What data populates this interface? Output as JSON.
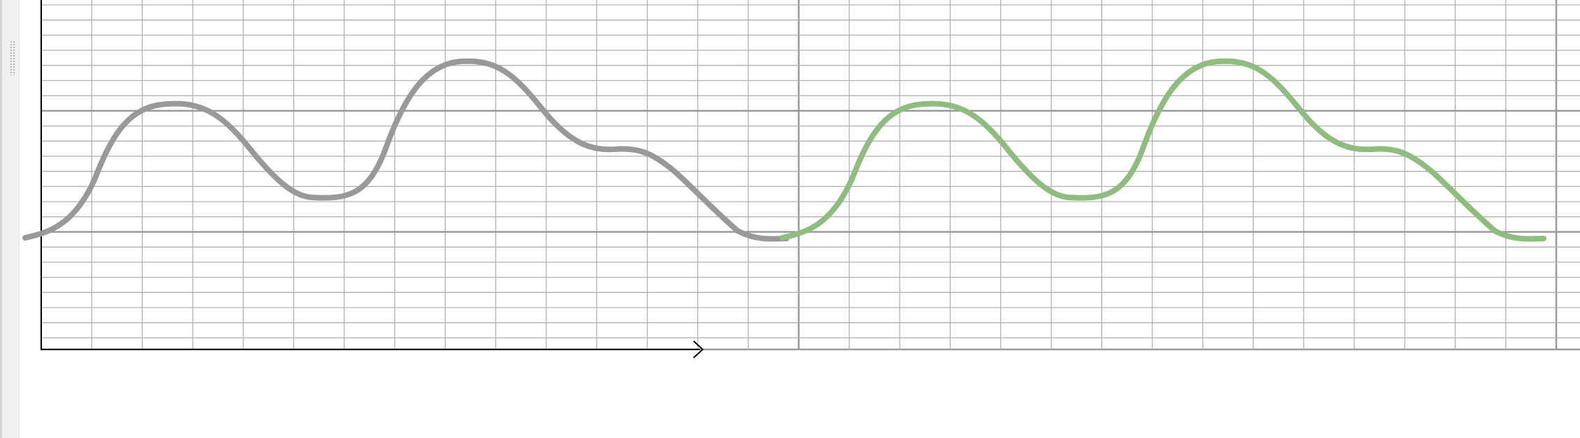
{
  "app": {
    "panel_handle": "drag-handle-icon"
  },
  "diagram": {
    "description_hidden": "",
    "colors": {
      "background": "#ffffff",
      "grid_minor": "#b0b0b0",
      "grid_major": "#9a9a9a",
      "axis": "#000000",
      "wave_original": "#999999",
      "wave_repeat": "#8fbc7f"
    },
    "grid": {
      "columns": 30,
      "rows": 23,
      "major_column": 15,
      "major_rows": [
        7,
        15
      ]
    },
    "wave_levels": {
      "start": 0,
      "peak_1": 8,
      "trough_1": 3,
      "peak_2": 11,
      "plateau": 5,
      "end": 0
    },
    "repeat_count": 2,
    "arrow": "arrow-right-icon"
  }
}
